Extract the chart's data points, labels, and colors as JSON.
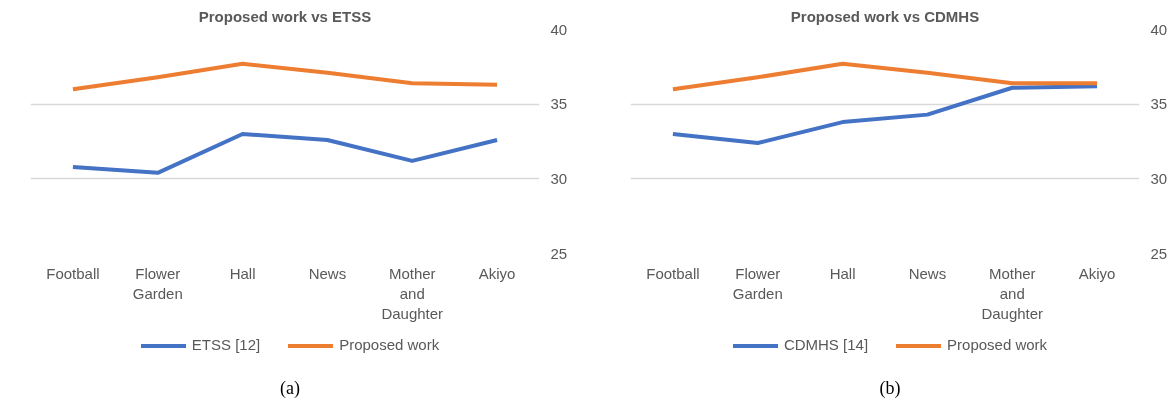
{
  "chart_data": [
    {
      "type": "line",
      "title": "Proposed work vs ETSS",
      "categories": [
        "Football",
        "Flower Garden",
        "Hall",
        "News",
        "Mother and Daughter",
        "Akiyo"
      ],
      "series": [
        {
          "name": "ETSS [12]",
          "color": "#4472c4",
          "values": [
            30.8,
            30.4,
            33.0,
            32.6,
            31.2,
            32.6
          ]
        },
        {
          "name": "Proposed work",
          "color": "#ed7d31",
          "values": [
            36.0,
            36.8,
            37.7,
            37.1,
            36.4,
            36.3
          ]
        }
      ],
      "ylim": [
        25,
        40
      ],
      "yticks": [
        25,
        30,
        35,
        40
      ],
      "grid": "y",
      "legend": "bottom",
      "marker": "none",
      "line_style": "solid",
      "annotations": [
        "(a)"
      ]
    },
    {
      "type": "line",
      "title": "Proposed work vs CDMHS",
      "categories": [
        "Football",
        "Flower Garden",
        "Hall",
        "News",
        "Mother and Daughter",
        "Akiyo"
      ],
      "series": [
        {
          "name": "CDMHS [14]",
          "color": "#4472c4",
          "values": [
            33.0,
            32.4,
            33.8,
            34.3,
            36.1,
            36.2
          ]
        },
        {
          "name": "Proposed work",
          "color": "#ed7d31",
          "values": [
            36.0,
            36.8,
            37.7,
            37.1,
            36.4,
            36.4
          ]
        }
      ],
      "ylim": [
        25,
        40
      ],
      "yticks": [
        25,
        30,
        35,
        40
      ],
      "grid": "y",
      "legend": "bottom",
      "marker": "none",
      "line_style": "solid",
      "annotations": [
        "(b)"
      ]
    }
  ]
}
